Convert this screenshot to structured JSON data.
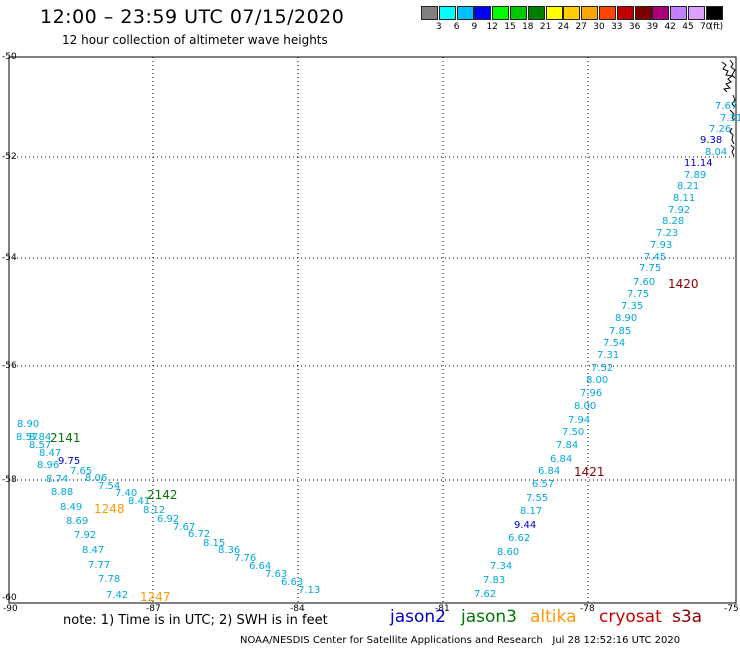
{
  "header": {
    "title": "12:00 – 23:59 UTC 07/15/2020",
    "subtitle": "12 hour collection of altimeter wave heights"
  },
  "colorbar": {
    "colors": [
      "#808080",
      "#00ffff",
      "#00bfff",
      "#0000ff",
      "#00ff00",
      "#00c800",
      "#008000",
      "#ffff00",
      "#ffcc00",
      "#ffa500",
      "#ff4500",
      "#c00000",
      "#800000",
      "#aa0077",
      "#c080ff",
      "#dda0ff",
      "#000000"
    ],
    "labels": [
      "3",
      "6",
      "9",
      "12",
      "15",
      "18",
      "21",
      "24",
      "27",
      "30",
      "33",
      "36",
      "39",
      "42",
      "45",
      "70"
    ],
    "unit": "(ft)"
  },
  "axes": {
    "lat_labels": [
      "-50",
      "-52",
      "-54",
      "-56",
      "-58",
      "-60"
    ],
    "lon_labels": [
      "-90",
      "-87",
      "-84",
      "-81",
      "-78",
      "-75"
    ]
  },
  "colors": {
    "cyan": "#00a8e0",
    "blue": "#0000cc",
    "green": "#007700",
    "orange": "#ff9900",
    "darkred": "#880000",
    "red": "#cc0000"
  },
  "track_east": {
    "values": [
      "7.67",
      "7.31",
      "7.26",
      "9.38",
      "8.04",
      "11.14",
      "7.89",
      "8.21",
      "8.11",
      "7.92",
      "8.28",
      "7.23",
      "7.93",
      "7.45",
      "7.75",
      "7.60",
      "7.75",
      "7.35",
      "8.90",
      "7.85",
      "7.54",
      "7.31",
      "7.52",
      "8.00",
      "7.96",
      "8.00",
      "7.94",
      "7.50",
      "7.84",
      "6.84",
      "6.84",
      "6.57",
      "7.55",
      "8.17",
      "9.44",
      "6.62",
      "8.60",
      "7.34",
      "7.83",
      "7.62"
    ],
    "time_a": "1420",
    "time_b": "1421"
  },
  "track_west": {
    "values_a": [
      "8.90",
      "8.57",
      "8.84",
      "8.57",
      "8.47",
      "8.96",
      "9.75",
      "7.65",
      "8.74",
      "8.06",
      "8.88",
      "7.54",
      "8.49",
      "7.40",
      "8.69",
      "8.41",
      "7.92",
      "8.12",
      "8.47",
      "6.92",
      "7.77",
      "7.67",
      "7.78",
      "6.72",
      "7.42",
      "8.15",
      "8.36",
      "7.76",
      "6.64",
      "7.63",
      "6.63",
      "7.13"
    ],
    "time_a": "2141",
    "time_b": "2142",
    "time_c": "1248",
    "time_d": "1247"
  },
  "note": "note: 1) Time is in UTC; 2) SWH is in feet",
  "legend": [
    "jason2",
    "jason3",
    "altika",
    "cryosat",
    "s3a"
  ],
  "footer": "NOAA/NESDIS Center for Satellite Applications and Research   Jul 28 12:52:16 UTC 2020"
}
